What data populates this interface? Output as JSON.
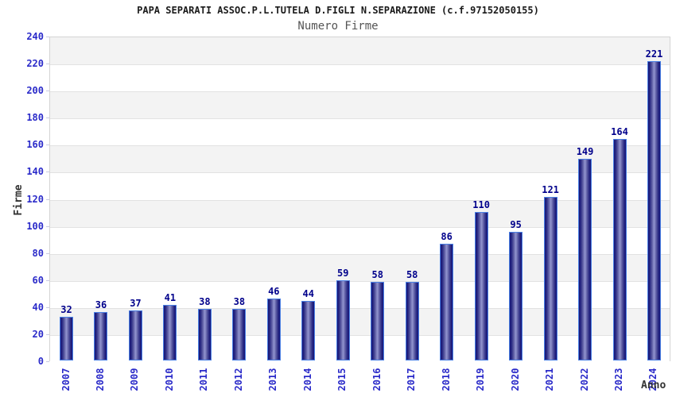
{
  "chart_data": {
    "type": "bar",
    "title": "PAPA SEPARATI ASSOC.P.L.TUTELA D.FIGLI N.SEPARAZIONE (c.f.97152050155)",
    "subtitle": "Numero Firme",
    "xlabel": "Anno",
    "ylabel": "Firme",
    "categories": [
      "2007",
      "2008",
      "2009",
      "2010",
      "2011",
      "2012",
      "2013",
      "2014",
      "2015",
      "2016",
      "2017",
      "2018",
      "2019",
      "2020",
      "2021",
      "2022",
      "2023",
      "2024"
    ],
    "values": [
      32,
      36,
      37,
      41,
      38,
      38,
      46,
      44,
      59,
      58,
      58,
      86,
      110,
      95,
      121,
      149,
      164,
      221
    ],
    "ylim": [
      0,
      240
    ],
    "ytick_step": 20,
    "yticks": [
      0,
      20,
      40,
      60,
      80,
      100,
      120,
      140,
      160,
      180,
      200,
      220,
      240
    ],
    "grid": "horizontal alternating bands, gray stripe on odd 20-unit bands",
    "legend": "none",
    "bar_value_labels": true,
    "x_tick_rotation_deg": -90,
    "colors": {
      "bar_edge_dark": "#16167a",
      "bar_center_light": "#9395cf",
      "bar_border": "#4a80e4",
      "value_label": "#00008b",
      "tick_label": "#2a2ac9",
      "title": "#1a1a1a",
      "subtitle": "#555555",
      "axis_title": "#333333",
      "band_gray": "#f3f3f3",
      "band_white": "#ffffff",
      "grid_line": "#e2e2e2",
      "plot_border": "#d4d4d4",
      "background": "#ffffff"
    }
  }
}
